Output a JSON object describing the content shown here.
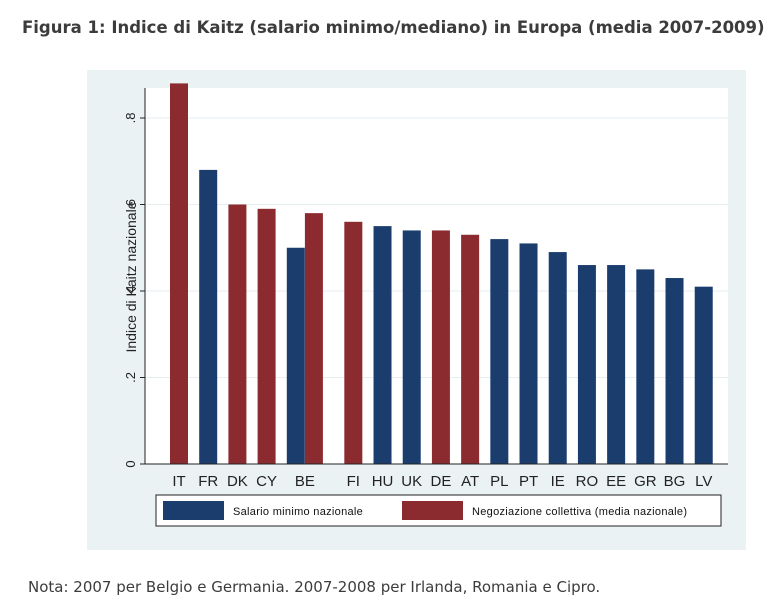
{
  "figure": {
    "title": "Figura 1: Indice di Kaitz (salario minimo/mediano) in Europa (media 2007-2009)",
    "note": "Nota: 2007 per Belgio e Germania. 2007-2008 per Irlanda, Romania e Cipro."
  },
  "colors": {
    "frame_bg": "#eaf2f3",
    "plot_bg": "#ffffff",
    "grid": "#e6eef0",
    "salario": "#1a3d6e",
    "negoziazione": "#8b2a2f"
  },
  "chart_data": {
    "type": "bar",
    "ylabel": "Indice di Kaitz nazionale",
    "xlabel": "",
    "ylim": [
      0,
      0.9
    ],
    "yticks": [
      0,
      0.2,
      0.4,
      0.6,
      0.8
    ],
    "ytick_labels": [
      "0",
      ".2",
      ".4",
      ".6",
      ".8"
    ],
    "grid": true,
    "legend_position": "bottom",
    "series": [
      {
        "name": "Salario minimo nazionale",
        "color_key": "salario"
      },
      {
        "name": "Negoziazione collettiva (media nazionale)",
        "color_key": "negoziazione"
      }
    ],
    "categories": [
      "IT",
      "FR",
      "DK",
      "CY",
      "BE",
      "FI",
      "HU",
      "UK",
      "DE",
      "AT",
      "PL",
      "PT",
      "IE",
      "RO",
      "EE",
      "GR",
      "BG",
      "LV"
    ],
    "bars": [
      {
        "category": "IT",
        "series": 1,
        "value": 0.88
      },
      {
        "category": "FR",
        "series": 0,
        "value": 0.68
      },
      {
        "category": "DK",
        "series": 1,
        "value": 0.6
      },
      {
        "category": "CY",
        "series": 1,
        "value": 0.59
      },
      {
        "category": "BE",
        "series": 0,
        "value": 0.5
      },
      {
        "category": "BE",
        "series": 1,
        "value": 0.58
      },
      {
        "category": "FI",
        "series": 1,
        "value": 0.56
      },
      {
        "category": "HU",
        "series": 0,
        "value": 0.55
      },
      {
        "category": "UK",
        "series": 0,
        "value": 0.54
      },
      {
        "category": "DE",
        "series": 1,
        "value": 0.54
      },
      {
        "category": "AT",
        "series": 1,
        "value": 0.53
      },
      {
        "category": "PL",
        "series": 0,
        "value": 0.52
      },
      {
        "category": "PT",
        "series": 0,
        "value": 0.51
      },
      {
        "category": "IE",
        "series": 0,
        "value": 0.49
      },
      {
        "category": "RO",
        "series": 0,
        "value": 0.46
      },
      {
        "category": "EE",
        "series": 0,
        "value": 0.46
      },
      {
        "category": "GR",
        "series": 0,
        "value": 0.45
      },
      {
        "category": "BG",
        "series": 0,
        "value": 0.43
      },
      {
        "category": "LV",
        "series": 0,
        "value": 0.41
      }
    ]
  }
}
